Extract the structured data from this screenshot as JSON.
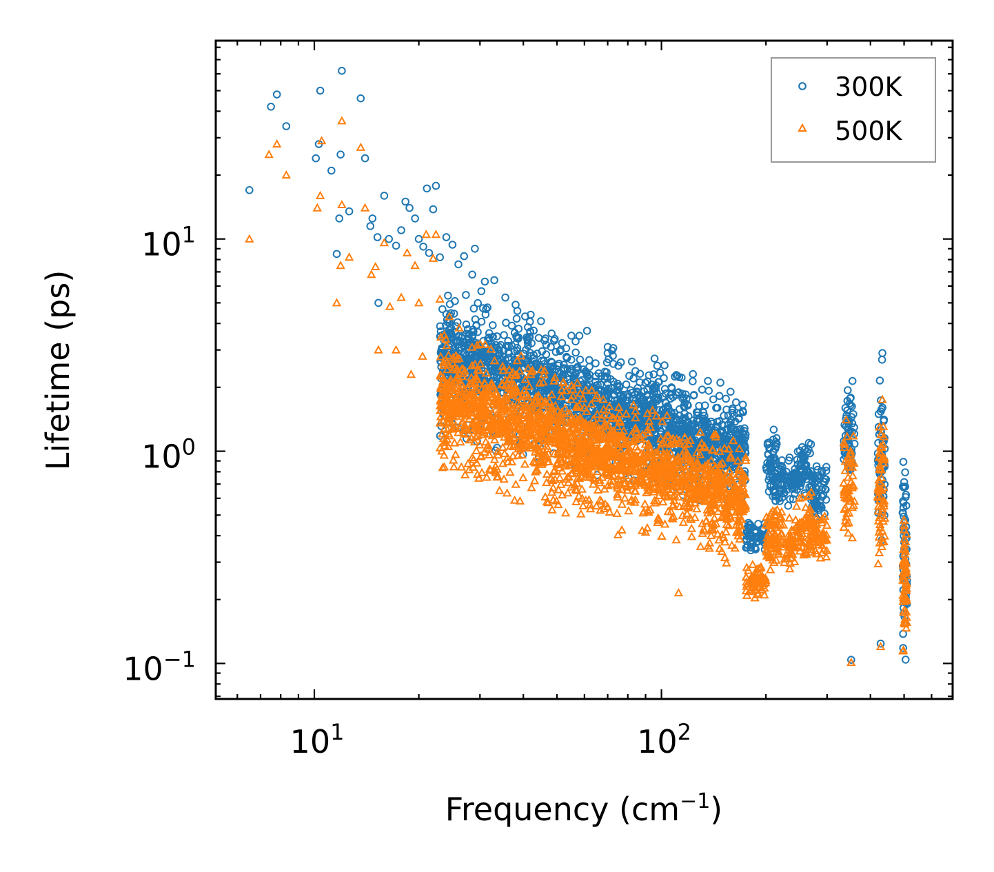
{
  "chart_data": {
    "type": "scatter",
    "xscale": "log",
    "yscale": "log",
    "xlabel": "Frequency (cm⁻¹)",
    "xlabel_main": "Frequency (cm",
    "xlabel_sup": "−1",
    "xlabel_close": ")",
    "ylabel": "Lifetime (ps)",
    "xlim": [
      5.2,
      690
    ],
    "ylim": [
      0.068,
      86
    ],
    "x_ticks": [
      {
        "value": 10,
        "base": "10",
        "exp": "1"
      },
      {
        "value": 100,
        "base": "10",
        "exp": "2"
      }
    ],
    "y_ticks": [
      {
        "value": 0.1,
        "base": "10",
        "exp": "−1"
      },
      {
        "value": 1,
        "base": "10",
        "exp": "0"
      },
      {
        "value": 10,
        "base": "10",
        "exp": "1"
      }
    ],
    "legend": {
      "position": "top-right",
      "entries": [
        {
          "label": "300K",
          "marker": "circle",
          "color": "#1f77b4"
        },
        {
          "label": "500K",
          "marker": "triangle",
          "color": "#ff7f0e"
        }
      ]
    },
    "series": [
      {
        "name": "300K",
        "marker": "circle",
        "color": "#1f77b4",
        "explicit_points": [
          [
            6.5,
            17
          ],
          [
            7.5,
            42
          ],
          [
            7.8,
            48
          ],
          [
            8.3,
            34
          ],
          [
            10.1,
            24
          ],
          [
            10.3,
            28
          ],
          [
            10.4,
            50
          ],
          [
            11.2,
            21
          ],
          [
            11.6,
            8.5
          ],
          [
            11.8,
            12.5
          ],
          [
            11.9,
            25
          ],
          [
            12.0,
            62
          ],
          [
            12.6,
            13.5
          ],
          [
            13.6,
            46
          ],
          [
            14.0,
            24
          ],
          [
            14.5,
            11.5
          ],
          [
            14.7,
            12.5
          ],
          [
            15.2,
            10.2
          ],
          [
            15.3,
            5
          ],
          [
            15.9,
            16
          ],
          [
            16.4,
            10
          ],
          [
            17.2,
            9.3
          ],
          [
            17.8,
            11
          ],
          [
            18.3,
            15
          ],
          [
            18.8,
            14
          ],
          [
            19.5,
            12.5
          ],
          [
            20.0,
            10
          ],
          [
            20.6,
            9.2
          ],
          [
            21.1,
            17.3
          ],
          [
            21.4,
            8.6
          ],
          [
            22.0,
            13.8
          ],
          [
            22.4,
            17.8
          ],
          [
            23.0,
            8.2
          ],
          [
            24.0,
            10.2
          ],
          [
            25.0,
            9.4
          ],
          [
            26.0,
            7.6
          ],
          [
            27.0,
            8.3
          ],
          [
            28.5,
            6.8
          ],
          [
            29.0,
            9.0
          ],
          [
            31.0,
            6.3
          ],
          [
            33.0,
            6.4
          ],
          [
            35.5,
            5.3
          ],
          [
            38.0,
            4.9
          ],
          [
            42.0,
            4.4
          ],
          [
            45.0,
            4.1
          ],
          [
            48.0,
            3.1
          ],
          [
            55.0,
            2.7
          ],
          [
            62.0,
            2.5
          ],
          [
            70.0,
            3.1
          ],
          [
            80.0,
            1.8
          ],
          [
            95.0,
            1.6
          ],
          [
            108.0,
            1.8
          ],
          [
            120.0,
            1.05
          ],
          [
            140.0,
            1.15
          ],
          [
            165.0,
            1.0
          ],
          [
            352.0,
            0.104
          ],
          [
            428.0,
            0.124
          ],
          [
            433.0,
            2.9
          ],
          [
            432.0,
            2.7
          ]
        ],
        "bands": [
          {
            "x": [
              23,
              175
            ],
            "y_start": [
              7.0,
              2.0
            ],
            "y_end": [
              1.1,
              0.5
            ]
          },
          {
            "x": [
              23,
              175
            ],
            "y_start": [
              4.6,
              1.3
            ],
            "y_end": [
              2.0,
              0.7
            ]
          },
          {
            "x": [
              175,
              200
            ],
            "y_min": 0.33,
            "y_max": 0.48
          },
          {
            "x": [
              200,
              215
            ],
            "y_min": 0.55,
            "y_max": 1.35
          },
          {
            "x": [
              215,
              245
            ],
            "y_min": 0.55,
            "y_max": 0.95
          },
          {
            "x": [
              245,
              270
            ],
            "y_min": 0.6,
            "y_max": 1.2
          },
          {
            "x": [
              270,
              300
            ],
            "y_min": 0.45,
            "y_max": 0.9
          },
          {
            "x": [
              335,
              360
            ],
            "y_min": 0.7,
            "y_max": 2.2
          },
          {
            "x": [
              420,
              440
            ],
            "y_min": 0.3,
            "y_max": 2.4
          },
          {
            "x": [
              495,
              510
            ],
            "y_min": 0.1,
            "y_max": 1.1
          }
        ]
      },
      {
        "name": "500K",
        "marker": "triangle",
        "color": "#ff7f0e",
        "explicit_points": [
          [
            6.5,
            10
          ],
          [
            7.4,
            25
          ],
          [
            7.8,
            28
          ],
          [
            8.3,
            20
          ],
          [
            10.2,
            14
          ],
          [
            10.4,
            16
          ],
          [
            10.5,
            29
          ],
          [
            11.6,
            5
          ],
          [
            11.9,
            7.5
          ],
          [
            12.0,
            14.5
          ],
          [
            12.0,
            36
          ],
          [
            12.6,
            8.2
          ],
          [
            13.6,
            27
          ],
          [
            14.0,
            14
          ],
          [
            14.6,
            6.8
          ],
          [
            15.0,
            7.4
          ],
          [
            15.3,
            3
          ],
          [
            15.9,
            9.6
          ],
          [
            16.5,
            4.8
          ],
          [
            17.2,
            3
          ],
          [
            17.8,
            5.3
          ],
          [
            18.5,
            8.6
          ],
          [
            19.0,
            2.3
          ],
          [
            19.5,
            7.5
          ],
          [
            20.0,
            5
          ],
          [
            20.5,
            2.8
          ],
          [
            21.0,
            10.5
          ],
          [
            22.0,
            8.1
          ],
          [
            22.4,
            10.5
          ],
          [
            23.0,
            5.2
          ],
          [
            24.5,
            4.3
          ],
          [
            26.0,
            2.2
          ],
          [
            30.0,
            3.2
          ],
          [
            35.0,
            2.4
          ],
          [
            38.0,
            2.0
          ],
          [
            42.0,
            2.3
          ],
          [
            46.0,
            2.4
          ],
          [
            55.0,
            1.75
          ],
          [
            60.0,
            1.6
          ],
          [
            68.0,
            1.75
          ],
          [
            80.0,
            1.1
          ],
          [
            95.0,
            0.85
          ],
          [
            112.0,
            0.215
          ],
          [
            352.0,
            0.101
          ],
          [
            428.0,
            0.12
          ],
          [
            433.0,
            1.75
          ]
        ],
        "bands": [
          {
            "x": [
              23,
              175
            ],
            "y_start": [
              4.2,
              1.2
            ],
            "y_end": [
              0.65,
              0.27
            ]
          },
          {
            "x": [
              23,
              175
            ],
            "y_start": [
              2.8,
              0.8
            ],
            "y_end": [
              1.2,
              0.42
            ]
          },
          {
            "x": [
              175,
              200
            ],
            "y_min": 0.2,
            "y_max": 0.3
          },
          {
            "x": [
              200,
              215
            ],
            "y_min": 0.27,
            "y_max": 0.58
          },
          {
            "x": [
              215,
              245
            ],
            "y_min": 0.27,
            "y_max": 0.55
          },
          {
            "x": [
              245,
              270
            ],
            "y_min": 0.3,
            "y_max": 0.7
          },
          {
            "x": [
              270,
              300
            ],
            "y_min": 0.3,
            "y_max": 0.5
          },
          {
            "x": [
              335,
              360
            ],
            "y_min": 0.35,
            "y_max": 1.45
          },
          {
            "x": [
              420,
              440
            ],
            "y_min": 0.25,
            "y_max": 1.6
          },
          {
            "x": [
              495,
              510
            ],
            "y_min": 0.093,
            "y_max": 0.7
          }
        ]
      }
    ]
  }
}
